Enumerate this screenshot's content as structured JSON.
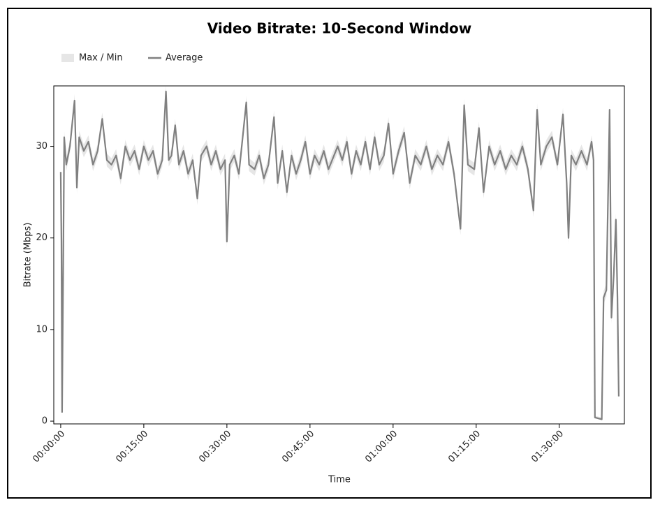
{
  "chart_data": {
    "type": "line",
    "title": "Video Bitrate: 10-Second Window",
    "x_label": "Time",
    "y_label": "Bitrate (Mbps)",
    "xlim": [
      -75,
      6105
    ],
    "ylim": [
      -0.3,
      36.6
    ],
    "xticks": [
      {
        "value": 0,
        "label": "00:00:00"
      },
      {
        "value": 900,
        "label": "00:15:00"
      },
      {
        "value": 1800,
        "label": "00:30:00"
      },
      {
        "value": 2700,
        "label": "00:45:00"
      },
      {
        "value": 3600,
        "label": "01:00:00"
      },
      {
        "value": 4500,
        "label": "01:15:00"
      },
      {
        "value": 5400,
        "label": "01:30:00"
      }
    ],
    "yticks": [
      0,
      10,
      20,
      30
    ],
    "grid": false,
    "legend": "top-left",
    "x": [
      0,
      8,
      15,
      38,
      60,
      100,
      150,
      175,
      200,
      250,
      300,
      350,
      400,
      450,
      500,
      550,
      600,
      650,
      700,
      750,
      800,
      850,
      900,
      950,
      1000,
      1050,
      1100,
      1140,
      1170,
      1200,
      1240,
      1280,
      1330,
      1380,
      1430,
      1480,
      1520,
      1580,
      1630,
      1680,
      1730,
      1780,
      1800,
      1830,
      1880,
      1930,
      2010,
      2040,
      2100,
      2150,
      2200,
      2250,
      2310,
      2350,
      2400,
      2450,
      2500,
      2550,
      2600,
      2650,
      2700,
      2750,
      2800,
      2850,
      2900,
      2960,
      3000,
      3050,
      3100,
      3150,
      3200,
      3250,
      3300,
      3350,
      3400,
      3450,
      3500,
      3550,
      3600,
      3660,
      3720,
      3780,
      3840,
      3900,
      3960,
      4020,
      4080,
      4140,
      4200,
      4260,
      4330,
      4370,
      4410,
      4480,
      4530,
      4580,
      4640,
      4700,
      4760,
      4820,
      4880,
      4940,
      5000,
      5060,
      5120,
      5160,
      5200,
      5260,
      5320,
      5380,
      5440,
      5480,
      5500,
      5530,
      5580,
      5640,
      5700,
      5750,
      5771,
      5786,
      5860,
      5880,
      5910,
      5945,
      5965,
      5990,
      6013,
      6030,
      6044
    ],
    "series": [
      {
        "name": "Max / Min",
        "color": "#e6e6e6",
        "max": [
          27.9,
          20.3,
          1.5,
          31.7,
          28.7,
          30.7,
          35.7,
          26.2,
          31.7,
          30.2,
          31.2,
          28.7,
          30.2,
          33.7,
          29.2,
          28.7,
          29.7,
          27.2,
          30.7,
          29.2,
          30.2,
          28.2,
          30.7,
          29.2,
          30.2,
          27.7,
          29.2,
          36.7,
          29.2,
          29.7,
          33,
          28.7,
          30.2,
          27.7,
          29.2,
          25,
          29.7,
          30.7,
          28.7,
          30.2,
          28.2,
          29.2,
          20.3,
          28.7,
          29.7,
          27.7,
          35.5,
          28.7,
          28.2,
          29.7,
          27.2,
          28.7,
          33.9,
          26.7,
          30.2,
          25.7,
          29.7,
          27.7,
          29.2,
          31.2,
          27.7,
          29.7,
          28.7,
          30.2,
          28.2,
          29.7,
          30.7,
          29.2,
          31.2,
          27.7,
          30.2,
          28.7,
          31.2,
          28.2,
          31.7,
          28.7,
          29.7,
          33.2,
          27.7,
          30.2,
          32.2,
          26.7,
          29.7,
          28.7,
          30.7,
          28.2,
          29.7,
          28.7,
          31.2,
          27.7,
          21.7,
          35.2,
          28.7,
          28.2,
          32.7,
          25.7,
          30.7,
          28.7,
          30.2,
          28.2,
          29.7,
          28.7,
          30.7,
          28.2,
          23.7,
          34.7,
          28.7,
          30.7,
          31.7,
          28.7,
          34.2,
          26.7,
          20.7,
          29.7,
          28.7,
          30.2,
          28.7,
          31.2,
          29.2,
          0.6,
          0.4,
          14.2,
          15,
          34.7,
          12,
          16.7,
          22.7,
          14.2,
          3
        ],
        "min": [
          26.5,
          18.9,
          0.8,
          30.3,
          27.3,
          29.3,
          34.3,
          24.8,
          30.3,
          28.8,
          29.8,
          27.3,
          28.8,
          32.3,
          27.8,
          27.3,
          28.3,
          25.8,
          29.3,
          27.8,
          28.8,
          26.8,
          29.3,
          27.8,
          28.8,
          26.3,
          27.8,
          35.3,
          27.8,
          28.3,
          31.6,
          27.3,
          28.8,
          26.3,
          27.8,
          23.6,
          28.3,
          29.3,
          27.3,
          28.8,
          26.8,
          27.8,
          18.9,
          27.3,
          28.3,
          26.3,
          34.1,
          27.3,
          26.8,
          28.3,
          25.8,
          27.3,
          32.5,
          25.3,
          28.8,
          24.3,
          28.3,
          26.3,
          27.8,
          29.8,
          26.3,
          28.3,
          27.3,
          28.8,
          26.8,
          28.3,
          29.3,
          27.8,
          29.8,
          26.3,
          28.8,
          27.3,
          29.8,
          26.8,
          30.3,
          27.3,
          28.3,
          31.8,
          26.3,
          28.8,
          30.8,
          25.3,
          28.3,
          27.3,
          29.3,
          26.8,
          28.3,
          27.3,
          29.8,
          26.3,
          20.3,
          33.8,
          27.3,
          26.8,
          31.3,
          24.3,
          29.3,
          27.3,
          28.8,
          26.8,
          28.3,
          27.3,
          29.3,
          26.8,
          22.3,
          33.3,
          27.3,
          29.3,
          30.3,
          27.3,
          32.8,
          25.3,
          19.3,
          28.3,
          27.3,
          28.8,
          27.3,
          29.8,
          27.8,
          0.3,
          0.1,
          12.8,
          13.6,
          33.3,
          10.6,
          15.3,
          21.3,
          12.8,
          2.5
        ]
      },
      {
        "name": "Average",
        "color": "#808080",
        "values": [
          27.2,
          19.6,
          1.0,
          31,
          28,
          30,
          35,
          25.5,
          31,
          29.5,
          30.5,
          28,
          29.5,
          33,
          28.5,
          28,
          29,
          26.5,
          30,
          28.5,
          29.5,
          27.5,
          30,
          28.5,
          29.5,
          27,
          28.5,
          36,
          28.5,
          29,
          32.3,
          28,
          29.5,
          27,
          28.5,
          24.3,
          29,
          30,
          28,
          29.5,
          27.5,
          28.5,
          19.6,
          28,
          29,
          27,
          34.8,
          28,
          27.5,
          29,
          26.5,
          28,
          33.2,
          26,
          29.5,
          25,
          29,
          27,
          28.5,
          30.5,
          27,
          29,
          28,
          29.5,
          27.5,
          29,
          30,
          28.5,
          30.5,
          27,
          29.5,
          28,
          30.5,
          27.5,
          31,
          28,
          29,
          32.5,
          27,
          29.5,
          31.5,
          26,
          29,
          28,
          30,
          27.5,
          29,
          28,
          30.5,
          27,
          21,
          34.5,
          28,
          27.5,
          32,
          25,
          30,
          28,
          29.5,
          27.5,
          29,
          28,
          30,
          27.5,
          23,
          34,
          28,
          30,
          31,
          28,
          33.5,
          26,
          20,
          29,
          28,
          29.5,
          28,
          30.5,
          28.5,
          0.4,
          0.2,
          13.5,
          14.3,
          34,
          11.3,
          16,
          22,
          13.5,
          2.7
        ]
      }
    ]
  }
}
